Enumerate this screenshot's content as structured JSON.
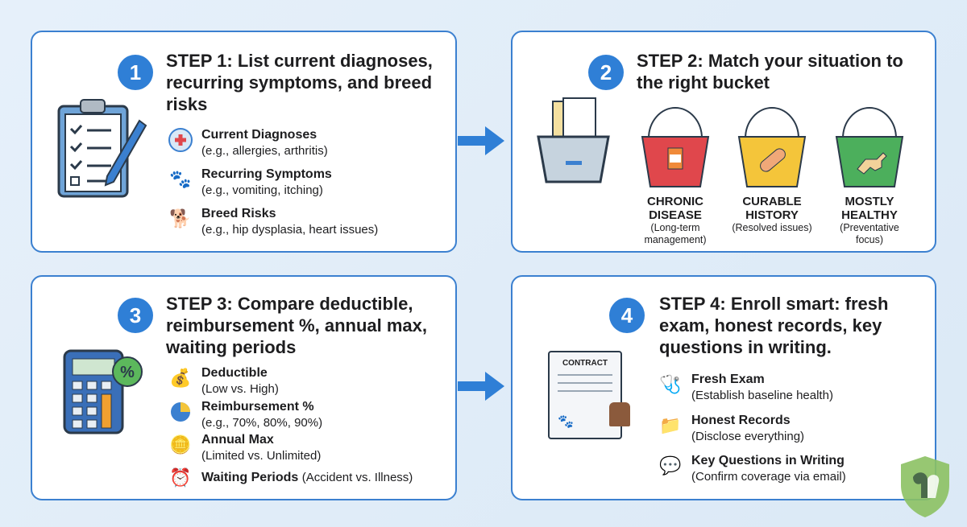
{
  "steps": [
    {
      "number": "1",
      "title": "STEP 1: List current diagnoses, recurring symptoms, and breed risks",
      "items": [
        {
          "label": "Current Diagnoses",
          "sub": "(e.g., allergies, arthritis)",
          "icon": "medical-cross-icon"
        },
        {
          "label": "Recurring Symptoms",
          "sub": "(e.g., vomiting, itching)",
          "icon": "pets-icon"
        },
        {
          "label": "Breed Risks",
          "sub": "(e.g., hip dysplasia, heart issues)",
          "icon": "dog-icon"
        }
      ]
    },
    {
      "number": "2",
      "title": "STEP 2: Match your situation to the right bucket",
      "buckets": [
        {
          "label1": "CHRONIC",
          "label2": "DISEASE",
          "sub": "(Long-term management)",
          "color": "#e0474c",
          "icon": "medicine-bottle-icon"
        },
        {
          "label1": "CURABLE",
          "label2": "HISTORY",
          "sub": "(Resolved issues)",
          "color": "#f4c53a",
          "icon": "bandage-icon"
        },
        {
          "label1": "MOSTLY",
          "label2": "HEALTHY",
          "sub": "(Preventative focus)",
          "color": "#4caf5c",
          "icon": "running-dog-icon"
        }
      ]
    },
    {
      "number": "3",
      "title": "STEP 3: Compare deductible, reimbursement %, annual max, waiting periods",
      "items": [
        {
          "label": "Deductible",
          "sub": "(Low vs. High)",
          "icon": "money-bag-icon"
        },
        {
          "label": "Reimbursement %",
          "sub": "(e.g., 70%, 80%, 90%)",
          "icon": "pie-chart-icon"
        },
        {
          "label": "Annual Max",
          "sub": "(Limited vs. Unlimited)",
          "icon": "coins-icon"
        },
        {
          "label": "Waiting Periods",
          "sub": "(Accident vs. Illness)",
          "icon": "clock-calendar-icon"
        }
      ]
    },
    {
      "number": "4",
      "title": "STEP 4: Enroll smart: fresh exam, honest records, key questions in writing.",
      "contract_label": "CONTRACT",
      "items": [
        {
          "label": "Fresh Exam",
          "sub": "(Establish baseline health)",
          "icon": "stethoscope-icon"
        },
        {
          "label": "Honest Records",
          "sub": "(Disclose everything)",
          "icon": "folder-check-icon"
        },
        {
          "label": "Key Questions in Writing",
          "sub": "(Confirm coverage via email)",
          "icon": "chat-pencil-icon"
        }
      ]
    }
  ],
  "colors": {
    "accent": "#2f7fd6",
    "border": "#3b80d0",
    "background": "#e3eef8"
  }
}
